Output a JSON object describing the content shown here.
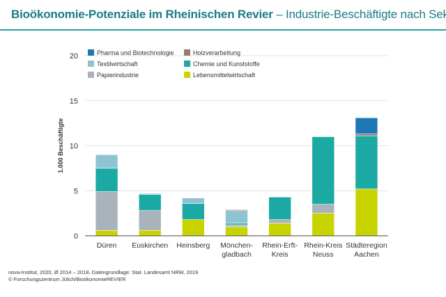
{
  "header": {
    "title": "Bioökonomie-Potenziale im Rheinischen Revier",
    "separator": "–",
    "subtitle": "Industrie-Beschäftigte nach Sektor"
  },
  "footer": {
    "source_line": "nova-Institut, 2020, Ø 2014 – 2018, Datengrundlage: Stat. Landesamt NRW, 2019",
    "copyright_line": "© Forschungszentrum Jülich/BioökonomieREVIER"
  },
  "colors": {
    "accent": "#1a7c87",
    "axis": "#444444",
    "gridline": "#d9d9d9"
  },
  "chart_data": {
    "type": "bar",
    "stacked": true,
    "ylabel": "1.000 Beschäftigte",
    "ylim": [
      0,
      20
    ],
    "yticks": [
      0,
      5,
      10,
      15,
      20
    ],
    "grid": true,
    "legend_position": "top-left",
    "categories": [
      [
        "Düren"
      ],
      [
        "Euskirchen"
      ],
      [
        "Heinsberg"
      ],
      [
        "Mönchen-",
        "gladbach"
      ],
      [
        "Rhein-Erft-",
        "Kreis"
      ],
      [
        "Rhein-Kreis",
        "Neuss"
      ],
      [
        "Städteregion",
        "Aachen"
      ]
    ],
    "series": [
      {
        "name": "Lebensmittelwirtschaft",
        "color": "#c8d400",
        "values": [
          0.6,
          0.6,
          1.8,
          1.0,
          1.4,
          2.5,
          5.2
        ]
      },
      {
        "name": "Papierindustrie",
        "color": "#a9b3bb",
        "values": [
          4.3,
          2.2,
          0.0,
          0.2,
          0.4,
          1.0,
          0.0
        ]
      },
      {
        "name": "Chemie und Kunststoffe",
        "color": "#1aa9a3",
        "values": [
          2.6,
          1.8,
          1.8,
          0.2,
          2.5,
          7.5,
          5.9
        ]
      },
      {
        "name": "Textilwirtschaft",
        "color": "#8fc3d3",
        "values": [
          1.5,
          0.1,
          0.6,
          1.4,
          0.0,
          0.0,
          0.0
        ]
      },
      {
        "name": "Holzverarbeitung",
        "color": "#9b7b6b",
        "values": [
          0.0,
          0.0,
          0.0,
          0.1,
          0.0,
          0.0,
          0.2
        ]
      },
      {
        "name": "Pharma und Biotechnologie",
        "color": "#1f78b4",
        "values": [
          0.0,
          0.0,
          0.0,
          0.0,
          0.0,
          0.0,
          1.8
        ]
      }
    ],
    "legend_order": [
      "Pharma und Biotechnologie",
      "Holzverarbeitung",
      "Textilwirtschaft",
      "Chemie und Kunststoffe",
      "Papierindustrie",
      "Lebensmittelwirtschaft"
    ]
  }
}
